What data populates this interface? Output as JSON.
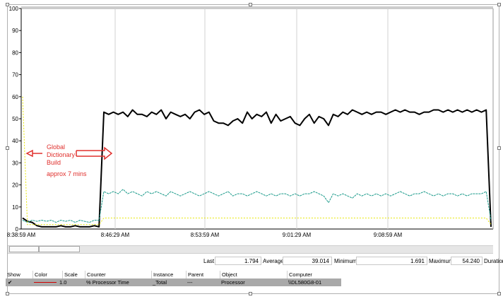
{
  "chart_data": {
    "type": "line",
    "y_ticks": [
      "0",
      "10",
      "20",
      "30",
      "40",
      "50",
      "60",
      "70",
      "80",
      "90",
      "100"
    ],
    "ylim": [
      0,
      100
    ],
    "x_ticks": [
      "8:38:59 AM",
      "8:46:29 AM",
      "8:53:59 AM",
      "9:01:29 AM",
      "9:08:59 AM"
    ],
    "grid": "vertical",
    "series": [
      {
        "color": "#000000",
        "values": [
          5,
          3.5,
          3,
          1.5,
          1,
          1,
          1,
          1,
          1.5,
          1,
          1,
          1.5,
          1,
          1,
          1,
          1.5,
          1,
          53,
          52,
          53,
          52,
          53,
          51,
          54,
          52,
          52,
          51,
          53,
          52,
          54,
          50,
          53,
          52,
          51,
          52,
          50,
          53,
          54,
          52,
          53,
          49,
          48,
          48,
          47,
          49,
          50,
          48,
          53,
          50,
          52,
          51,
          53,
          48,
          52,
          49,
          50,
          51,
          48,
          47,
          50,
          52,
          48,
          51,
          50,
          47,
          52,
          51,
          53,
          52,
          54,
          53,
          52,
          53,
          52,
          53,
          53,
          52,
          53,
          54,
          53,
          54,
          53,
          53,
          52,
          53,
          53,
          54,
          54,
          53,
          54,
          53,
          54,
          53,
          54,
          53,
          54,
          53,
          54,
          1
        ]
      },
      {
        "color": "#1a9a8a",
        "values": [
          4,
          3,
          4,
          3.5,
          4,
          3.5,
          4,
          3,
          4,
          3.5,
          4,
          3,
          4,
          3.5,
          3,
          4,
          4,
          17,
          16,
          17,
          16,
          18,
          16,
          17,
          16,
          15,
          17,
          16,
          17,
          16,
          15,
          17,
          16,
          15,
          16,
          17,
          16,
          15,
          16,
          17,
          16,
          15,
          16,
          17,
          15,
          16,
          16,
          15,
          16,
          17,
          16,
          15,
          16,
          15,
          16,
          16,
          15,
          16,
          15,
          16,
          16,
          17,
          16,
          15,
          12,
          16,
          15,
          16,
          15,
          14,
          16,
          15,
          16,
          15,
          16,
          15,
          16,
          15,
          16,
          17,
          16,
          15,
          16,
          16,
          17,
          16,
          15,
          16,
          15,
          16,
          16,
          15,
          16,
          15,
          16,
          16,
          16,
          17,
          4
        ]
      },
      {
        "color": "#e6e600",
        "values": [
          60,
          2,
          2,
          2,
          2,
          2,
          2,
          2,
          2,
          2,
          2,
          2,
          2,
          2,
          2,
          2,
          2,
          5,
          5,
          5,
          5,
          5,
          5,
          5,
          5,
          5,
          5,
          5,
          5,
          5,
          5,
          5,
          5,
          5,
          5,
          5,
          5,
          5,
          5,
          5,
          5,
          5,
          5,
          5,
          5,
          5,
          5,
          5,
          5,
          5,
          5,
          5,
          5,
          5,
          5,
          5,
          5,
          5,
          5,
          5,
          5,
          5,
          5,
          5,
          5,
          5,
          5,
          5,
          5,
          5,
          5,
          5,
          5,
          5,
          5,
          5,
          5,
          5,
          5,
          5,
          5,
          5,
          5,
          5,
          5,
          5,
          5,
          5,
          5,
          5,
          5,
          5,
          5,
          5,
          5,
          5,
          5,
          5,
          2
        ]
      }
    ],
    "annotations": [
      "Global",
      "Dictionary",
      "Build",
      "approx 7 mins"
    ]
  },
  "stats": {
    "last_label": "Last",
    "last_value": "1.794",
    "average_label": "Average",
    "average_value": "39.014",
    "minimum_label": "Minimum",
    "minimum_value": "1.691",
    "maximum_label": "Maximum",
    "maximum_value": "54.240",
    "duration_label": "Duration"
  },
  "legend": {
    "headers": [
      "Show",
      "Color",
      "Scale",
      "Counter",
      "Instance",
      "Parent",
      "Object",
      "Computer"
    ],
    "row": {
      "show": "✔",
      "color": "#d00000",
      "scale": "1.0",
      "counter": "% Processor Time",
      "instance": "_Total",
      "parent": "---",
      "object": "Processor",
      "computer": "\\\\DL580G8-01"
    }
  }
}
